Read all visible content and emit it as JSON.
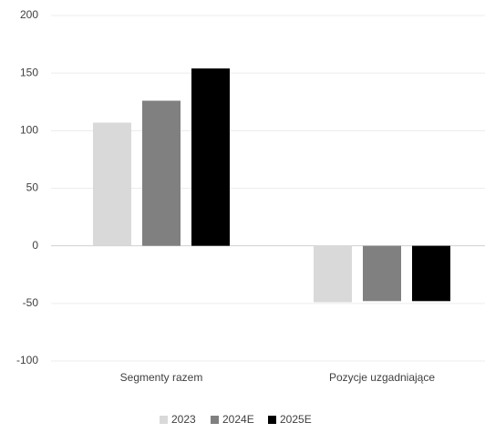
{
  "chart_data": {
    "type": "bar",
    "categories": [
      "Segmenty razem",
      "Pozycje uzgadniające"
    ],
    "series": [
      {
        "name": "2023",
        "color": "#d9d9d9",
        "values": [
          107,
          -49
        ]
      },
      {
        "name": "2024E",
        "color": "#808080",
        "values": [
          126,
          -48
        ]
      },
      {
        "name": "2025E",
        "color": "#000000",
        "values": [
          154,
          -48
        ]
      }
    ],
    "ylim": [
      -100,
      200
    ],
    "yticks": [
      -100,
      -50,
      0,
      50,
      100,
      150,
      200
    ],
    "grid": true,
    "legend": "bottom"
  }
}
